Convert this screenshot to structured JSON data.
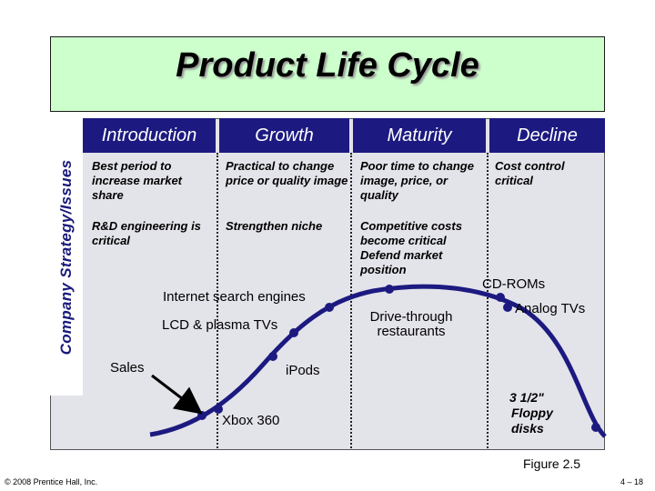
{
  "title": "Product Life Cycle",
  "vertical_label": "Company Strategy/Issues",
  "stages": [
    "Introduction",
    "Growth",
    "Maturity",
    "Decline"
  ],
  "strategies": {
    "introduction": [
      "Best period to increase market share",
      "R&D engineering is critical"
    ],
    "growth": [
      "Practical to change price or quality image",
      "Strengthen niche"
    ],
    "maturity": [
      "Poor time to change image, price, or quality",
      "Competitive costs become critical Defend market position"
    ],
    "decline": [
      "Cost control critical"
    ]
  },
  "products": {
    "sales": "Sales",
    "internet": "Internet search engines",
    "lcd": "LCD & plasma TVs",
    "ipods": "iPods",
    "xbox": "Xbox 360",
    "drive": "Drive-through restaurants",
    "cdroms": "CD-ROMs",
    "analog": "Analog TVs",
    "floppy": "3 1/2\" Floppy disks"
  },
  "figure_label": "Figure 2.5",
  "copyright": "© 2008 Prentice Hall, Inc.",
  "page_number": "4 – 18",
  "colors": {
    "title_bg": "#ccffcc",
    "header_bg": "#1c1a80",
    "panel_bg": "#e3e3ea",
    "curve": "#1c1a80",
    "label_text": "#1a1a7a"
  }
}
